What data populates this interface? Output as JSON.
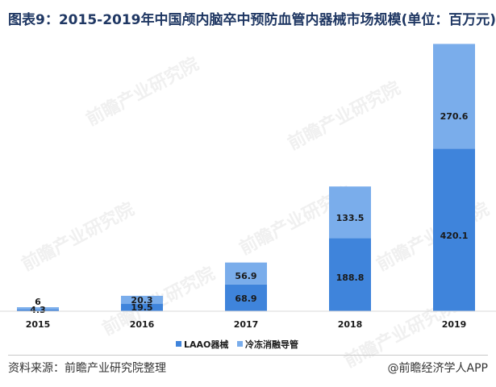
{
  "title": "图表9：2015-2019年中国颅内脑卒中预防血管内器械市场规模(单位：百万元)",
  "watermark": "前瞻产业研究院",
  "footer": {
    "source": "资料来源：前瞻产业研究院整理",
    "brand": "@前瞻经济学人APP"
  },
  "chart_data": {
    "type": "bar",
    "stacked": true,
    "title": "图表9：2015-2019年中国颅内脑卒中预防血管内器械市场规模(单位：百万元)",
    "xlabel": "",
    "ylabel": "",
    "categories": [
      "2015",
      "2016",
      "2017",
      "2018",
      "2019"
    ],
    "series": [
      {
        "name": "LAAO器械",
        "color": "#3f84db",
        "values": [
          4.3,
          19.5,
          68.9,
          188.8,
          420.1
        ],
        "labels": [
          "4.3",
          "19.5",
          "68.9",
          "188.8",
          "420.1"
        ]
      },
      {
        "name": "冷冻消融导管",
        "color": "#7aadeb",
        "values": [
          6,
          20.3,
          56.9,
          133.5,
          270.6
        ],
        "labels": [
          "6",
          "20.3",
          "56.9",
          "133.5",
          "270.6"
        ]
      }
    ],
    "ylim": [
      0,
      700
    ],
    "grid": false,
    "legend": "bottom"
  }
}
